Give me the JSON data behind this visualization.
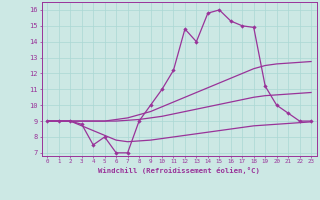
{
  "xlabel": "Windchill (Refroidissement éolien,°C)",
  "background_color": "#cce8e4",
  "grid_color": "#aad8d4",
  "line_color": "#993399",
  "x_values": [
    0,
    1,
    2,
    3,
    4,
    5,
    6,
    7,
    8,
    9,
    10,
    11,
    12,
    13,
    14,
    15,
    16,
    17,
    18,
    19,
    20,
    21,
    22,
    23
  ],
  "temp_line": [
    9,
    9,
    9,
    8.8,
    7.5,
    8.0,
    7.0,
    7.0,
    9.0,
    10.0,
    11.0,
    12.2,
    14.8,
    14.0,
    15.8,
    16.0,
    15.3,
    15.0,
    14.9,
    11.2,
    10.0,
    9.5,
    9.0,
    9.0
  ],
  "upper_line": [
    9.0,
    9.0,
    9.0,
    9.0,
    9.0,
    9.0,
    9.1,
    9.2,
    9.4,
    9.6,
    9.9,
    10.2,
    10.5,
    10.8,
    11.1,
    11.4,
    11.7,
    12.0,
    12.3,
    12.5,
    12.6,
    12.65,
    12.7,
    12.75
  ],
  "middle_line": [
    9.0,
    9.0,
    9.0,
    9.0,
    9.0,
    9.0,
    9.0,
    9.05,
    9.1,
    9.2,
    9.3,
    9.45,
    9.6,
    9.75,
    9.9,
    10.05,
    10.2,
    10.35,
    10.5,
    10.6,
    10.65,
    10.7,
    10.75,
    10.8
  ],
  "lower_line": [
    9.0,
    9.0,
    9.0,
    8.7,
    8.4,
    8.1,
    7.8,
    7.7,
    7.75,
    7.8,
    7.9,
    8.0,
    8.1,
    8.2,
    8.3,
    8.4,
    8.5,
    8.6,
    8.7,
    8.75,
    8.8,
    8.85,
    8.9,
    8.95
  ],
  "ylim": [
    6.8,
    16.5
  ],
  "yticks": [
    7,
    8,
    9,
    10,
    11,
    12,
    13,
    14,
    15,
    16
  ],
  "xlim": [
    -0.5,
    23.5
  ]
}
